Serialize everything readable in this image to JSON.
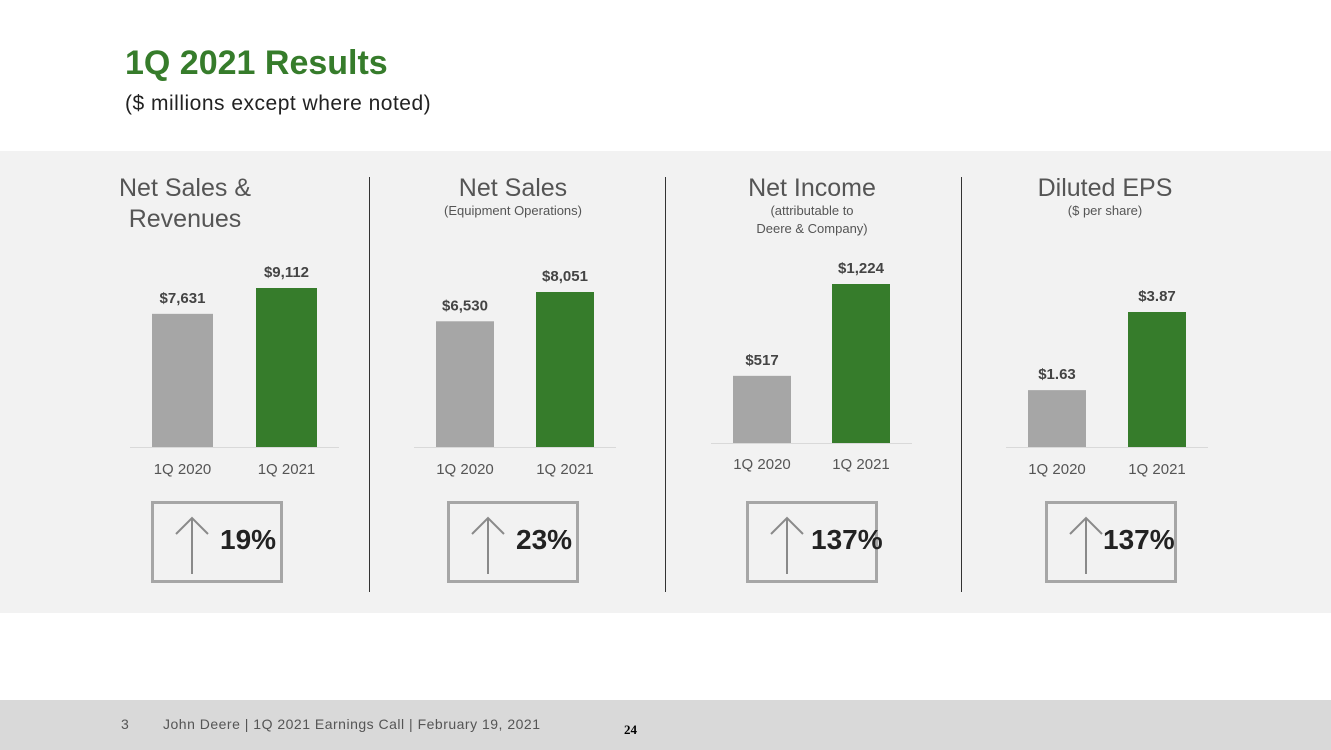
{
  "header": {
    "title": "1Q 2021 Results",
    "subtitle": "($ millions except where noted)"
  },
  "colors": {
    "brand_green": "#367c2b",
    "bar_gray": "#a6a6a6",
    "band_background": "#f2f2f2"
  },
  "icons": {
    "growth": "up-arrow-icon"
  },
  "chart_data": [
    {
      "type": "bar",
      "title": "Net Sales & Revenues",
      "subtitle": "",
      "categories": [
        "1Q 2020",
        "1Q 2021"
      ],
      "values": [
        7631,
        9112
      ],
      "value_labels": [
        "$7,631",
        "$9,112"
      ],
      "bar_colors": [
        "#a6a6a6",
        "#367c2b"
      ],
      "ylim": [
        0,
        9112
      ],
      "growth": "19%"
    },
    {
      "type": "bar",
      "title": "Net Sales",
      "subtitle": "(Equipment Operations)",
      "categories": [
        "1Q 2020",
        "1Q 2021"
      ],
      "values": [
        6530,
        8051
      ],
      "value_labels": [
        "$6,530",
        "$8,051"
      ],
      "bar_colors": [
        "#a6a6a6",
        "#367c2b"
      ],
      "ylim": [
        0,
        8051
      ],
      "growth": "23%"
    },
    {
      "type": "bar",
      "title": "Net Income",
      "subtitle": "(attributable to\nDeere & Company)",
      "categories": [
        "1Q 2020",
        "1Q 2021"
      ],
      "values": [
        517,
        1224
      ],
      "value_labels": [
        "$517",
        "$1,224"
      ],
      "bar_colors": [
        "#a6a6a6",
        "#367c2b"
      ],
      "ylim": [
        0,
        1224
      ],
      "growth": "137%"
    },
    {
      "type": "bar",
      "title": "Diluted EPS",
      "subtitle": "($ per share)",
      "categories": [
        "1Q 2020",
        "1Q 2021"
      ],
      "values": [
        1.63,
        3.87
      ],
      "value_labels": [
        "$1.63",
        "$3.87"
      ],
      "bar_colors": [
        "#a6a6a6",
        "#367c2b"
      ],
      "ylim": [
        0,
        3.87
      ],
      "growth": "137%"
    }
  ],
  "footer": {
    "page_number": "3",
    "text": "John Deere | 1Q 2021 Earnings Call | February 19, 2021",
    "slide_number": "24"
  }
}
